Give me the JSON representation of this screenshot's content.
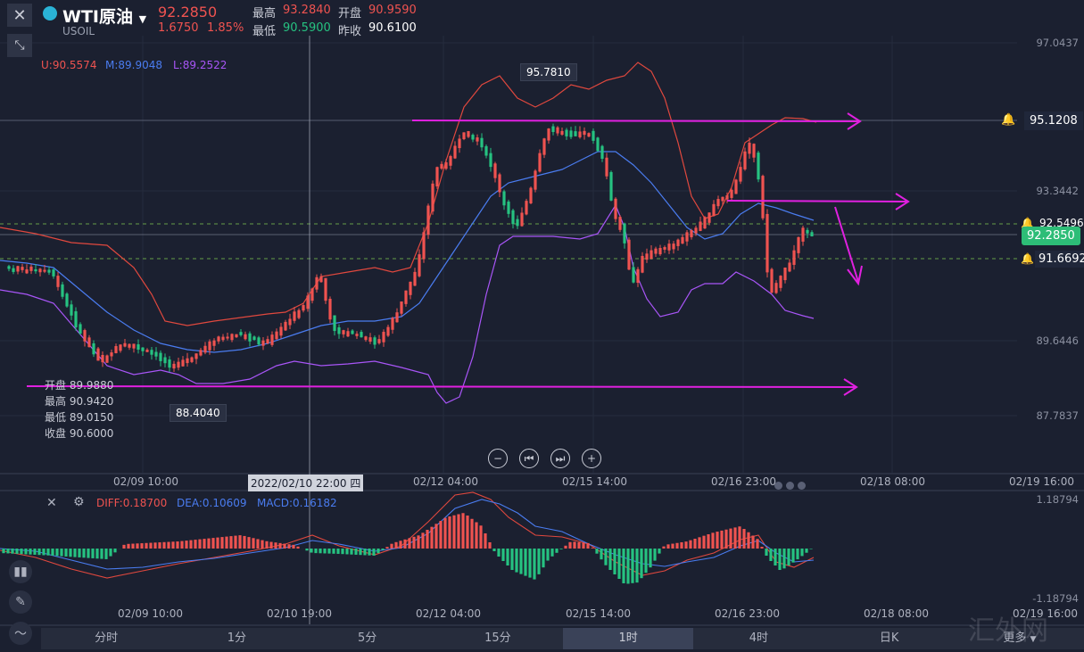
{
  "header": {
    "symbol": "WTI原油",
    "code": "USOIL",
    "price": "92.2850",
    "change": "1.6750",
    "change_pct": "1.85%",
    "high_label": "最高",
    "high": "93.2840",
    "open_label": "开盘",
    "open": "90.9590",
    "low_label": "最低",
    "low": "90.5900",
    "prev_label": "昨收",
    "prev": "90.6100"
  },
  "boll": {
    "u": "U:90.5574",
    "m": "M:89.9048",
    "l": "L:89.2522"
  },
  "ohlc_box": {
    "open": "开盘 89.9880",
    "high": "最高 90.9420",
    "low": "最低 89.0150",
    "close": "收盘 90.6000"
  },
  "y_axis": [
    "97.0437",
    "93.3442",
    "89.6446",
    "87.7837"
  ],
  "price_tags": {
    "top": "95.1208",
    "upper": "92.5496",
    "current": "92.2850",
    "lower": "91.6692",
    "peak": "95.7810",
    "trough": "88.4040"
  },
  "x_axis_main": [
    "02/09 10:00",
    "02/12 04:00",
    "02/15 14:00",
    "02/16 23:00",
    "02/18 08:00",
    "02/19 16:00"
  ],
  "cursor_time": "2022/02/10 22:00 四",
  "macd": {
    "diff": "DIFF:0.18700",
    "dea": "DEA:0.10609",
    "macd": "MACD:0.16182",
    "ymax": "1.18794",
    "ymin": "-1.18794"
  },
  "x_axis_macd": [
    "02/09 10:00",
    "02/10 19:00",
    "02/12 04:00",
    "02/15 14:00",
    "02/16 23:00",
    "02/18 08:00",
    "02/19 16:00"
  ],
  "tabs": [
    "分时",
    "1分",
    "5分",
    "15分",
    "1时",
    "4时",
    "日K",
    "更多"
  ],
  "active_tab": "1时",
  "watermark": "汇外网",
  "colors": {
    "up": "#ef5350",
    "down": "#26c281",
    "mid": "#4a7cf0",
    "lower": "#a855f7",
    "annot": "#e020e0"
  }
}
